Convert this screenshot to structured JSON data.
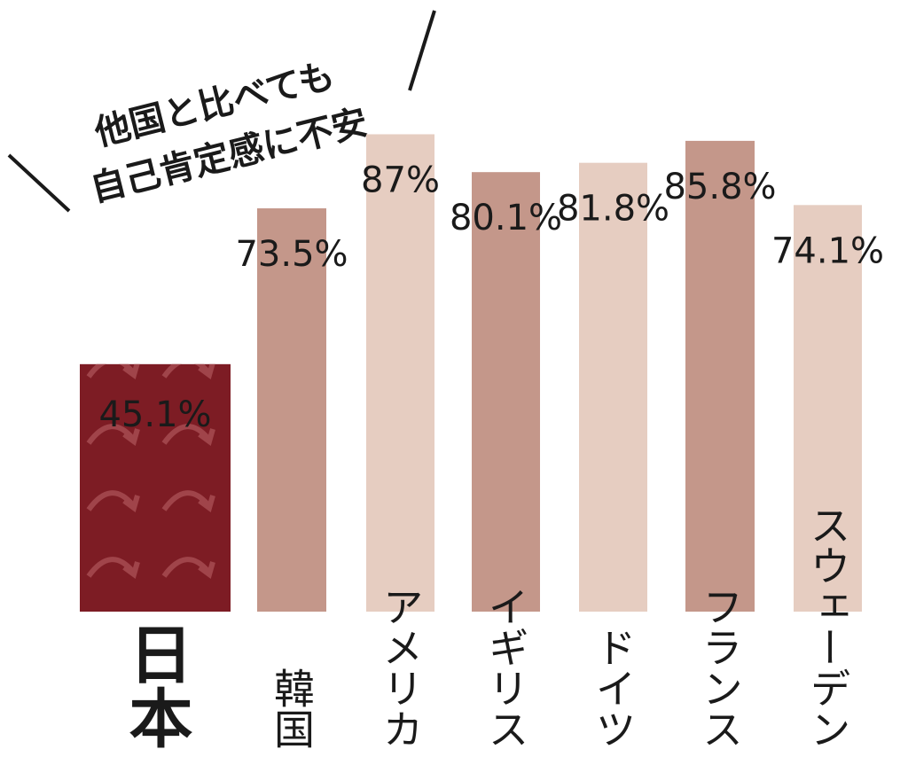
{
  "chart_data": {
    "type": "bar",
    "title_lines": [
      "他国と比べても",
      "自己肯定感に不安"
    ],
    "categories": [
      "日本",
      "韓国",
      "アメリカ",
      "イギリス",
      "ドイツ",
      "フランス",
      "スウェーデン"
    ],
    "values": [
      45.1,
      73.5,
      87,
      80.1,
      81.8,
      85.8,
      74.1
    ],
    "value_labels": [
      "45.1%",
      "73.5%",
      "87%",
      "80.1%",
      "81.8%",
      "85.8%",
      "74.1%"
    ],
    "colors": [
      "#7d1c24",
      "#c4978a",
      "#e6cdc1",
      "#c4978a",
      "#e6cdc1",
      "#c4978a",
      "#e6cdc1"
    ],
    "ylim": [
      0,
      100
    ]
  }
}
